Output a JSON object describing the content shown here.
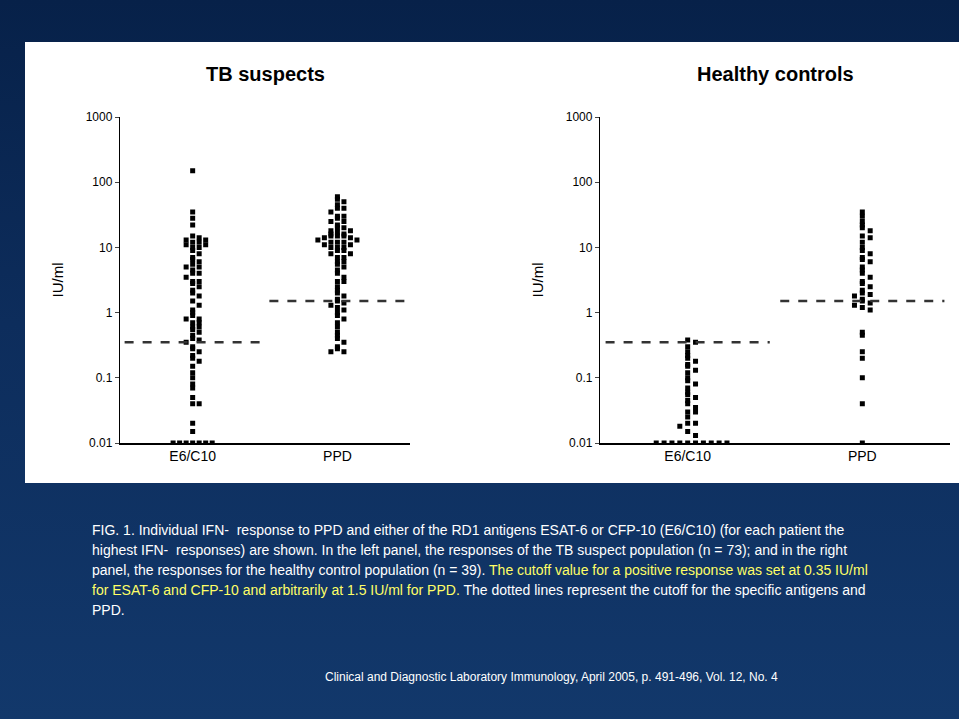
{
  "chart_data": [
    {
      "type": "strip",
      "title": "TB suspects",
      "y_label": "IU/ml",
      "log": "y",
      "categories": [
        "E6/C10",
        "PPD"
      ],
      "values": [
        [
          150,
          35,
          28,
          22,
          15,
          14,
          13,
          13,
          12,
          12,
          11,
          11,
          10,
          10,
          9,
          8,
          7,
          6.5,
          6,
          5.5,
          5,
          5,
          4.5,
          4,
          4,
          3.5,
          3,
          3,
          2.8,
          2.5,
          2.2,
          2,
          1.8,
          1.5,
          1.3,
          1.1,
          1,
          0.9,
          0.8,
          0.8,
          0.7,
          0.7,
          0.6,
          0.6,
          0.55,
          0.5,
          0.45,
          0.4,
          0.38,
          0.35,
          0.3,
          0.28,
          0.25,
          0.22,
          0.2,
          0.18,
          0.15,
          0.12,
          0.1,
          0.08,
          0.07,
          0.05,
          0.04,
          0.04,
          0.02,
          0.015,
          0.01,
          0.01,
          0.01,
          0.01,
          0.01,
          0.01,
          0.01
        ],
        [
          60,
          55,
          50,
          45,
          40,
          40,
          35,
          30,
          30,
          28,
          25,
          25,
          22,
          20,
          20,
          18,
          18,
          17,
          16,
          16,
          15,
          15,
          15,
          14,
          14,
          13,
          13,
          12,
          12,
          12,
          11,
          11,
          10,
          10,
          10,
          9,
          9,
          8,
          8,
          7,
          7,
          6,
          6,
          5.5,
          5,
          4.5,
          4,
          3.5,
          3,
          3,
          2.5,
          2.2,
          2,
          1.8,
          1.6,
          1.5,
          1.4,
          1.3,
          1.2,
          1.1,
          1,
          0.9,
          0.8,
          0.7,
          0.6,
          0.5,
          0.45,
          0.4,
          0.35,
          0.3,
          0.28,
          0.25,
          0.25
        ]
      ],
      "cutoffs": [
        0.35,
        1.5
      ],
      "color": "#000000",
      "marker": "square",
      "line_style": "dash",
      "ylim": [
        0.01,
        1000
      ],
      "yticks": [
        0.01,
        0.1,
        1,
        10,
        100,
        1000
      ]
    },
    {
      "type": "strip",
      "title": "Healthy controls",
      "y_label": "IU/ml",
      "log": "y",
      "categories": [
        "E6/C10",
        "PPD"
      ],
      "values": [
        [
          0.38,
          0.35,
          0.3,
          0.25,
          0.22,
          0.2,
          0.18,
          0.16,
          0.15,
          0.13,
          0.12,
          0.1,
          0.09,
          0.08,
          0.07,
          0.06,
          0.055,
          0.05,
          0.045,
          0.04,
          0.035,
          0.03,
          0.03,
          0.025,
          0.02,
          0.02,
          0.018,
          0.015,
          0.013,
          0.01,
          0.01,
          0.01,
          0.01,
          0.01,
          0.01,
          0.01,
          0.01,
          0.01,
          0.01
        ],
        [
          35,
          30,
          25,
          22,
          20,
          18,
          15,
          14,
          12,
          10,
          9,
          8,
          7,
          6.5,
          6,
          5,
          4.5,
          4,
          3.5,
          3,
          2.8,
          2.5,
          2.2,
          2,
          1.9,
          1.8,
          1.6,
          1.5,
          1.4,
          1.3,
          1.2,
          1.1,
          0.5,
          0.45,
          0.25,
          0.2,
          0.1,
          0.04,
          0.01
        ]
      ],
      "cutoffs": [
        0.35,
        1.5
      ],
      "color": "#000000",
      "marker": "square",
      "line_style": "dash",
      "ylim": [
        0.01,
        1000
      ],
      "yticks": [
        0.01,
        0.1,
        1,
        10,
        100,
        1000
      ]
    }
  ],
  "caption": [
    {
      "text": "FIG. 1. Individual IFN-  response to PPD and either of the RD1 antigens ESAT-6 or CFP-10 (E6/C10) (for each patient the highest IFN-  responses) are shown. In the left panel, the responses of the TB suspect population (n = 73); and in the right panel, the responses for the healthy control population (n = 39). ",
      "color": "#ffffff"
    },
    {
      "text": "The cutoff value for a positive response was set at 0.35 IU/ml for ESAT-6 and CFP-10 and arbitrarily at 1.5 IU/ml for PPD.",
      "color": "#ffff66"
    },
    {
      "text": " The dotted lines represent the cutoff for the specific antigens and PPD.",
      "color": "#ffffff"
    }
  ],
  "citation": "Clinical and Diagnostic Laboratory Immunology, April 2005, p. 491-496, Vol. 12, No. 4"
}
